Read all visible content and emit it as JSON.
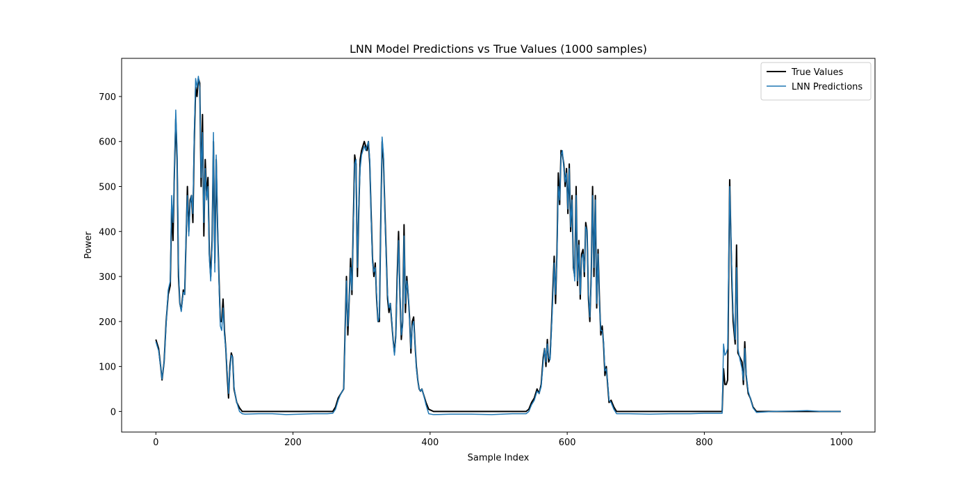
{
  "chart_data": {
    "type": "line",
    "title": "LNN Model Predictions vs True Values (1000 samples)",
    "x_label": "Sample Index",
    "y_label": "Power",
    "xlim": [
      -49.95,
      1048.95
    ],
    "ylim": [
      -45.7,
      784.8
    ],
    "xticks": [
      0,
      200,
      400,
      600,
      800,
      1000
    ],
    "yticks": [
      0,
      100,
      200,
      300,
      400,
      500,
      600,
      700
    ],
    "legend": "upper right",
    "x": [
      0,
      4,
      7,
      9,
      12,
      15,
      18,
      21,
      23,
      25,
      27,
      29,
      31,
      33,
      35,
      37,
      40,
      42,
      44,
      46,
      48,
      50,
      52,
      54,
      56,
      58,
      60,
      62,
      64,
      66,
      68,
      70,
      72,
      74,
      76,
      78,
      80,
      82,
      84,
      86,
      88,
      90,
      92,
      94,
      96,
      98,
      100,
      102,
      104,
      106,
      108,
      110,
      112,
      114,
      116,
      118,
      122,
      126,
      130,
      150,
      170,
      190,
      210,
      230,
      250,
      258,
      262,
      266,
      270,
      274,
      276,
      278,
      280,
      282,
      284,
      286,
      288,
      290,
      292,
      294,
      296,
      298,
      300,
      302,
      304,
      306,
      308,
      310,
      312,
      314,
      316,
      318,
      320,
      322,
      324,
      326,
      328,
      330,
      332,
      334,
      336,
      338,
      340,
      342,
      344,
      346,
      348,
      350,
      352,
      354,
      356,
      358,
      360,
      362,
      364,
      366,
      368,
      370,
      372,
      374,
      376,
      378,
      380,
      382,
      384,
      386,
      388,
      390,
      394,
      398,
      405,
      430,
      460,
      490,
      520,
      540,
      544,
      548,
      552,
      556,
      559,
      562,
      565,
      567,
      569,
      571,
      573,
      575,
      577,
      579,
      581,
      583,
      585,
      587,
      589,
      591,
      593,
      595,
      597,
      599,
      601,
      603,
      605,
      607,
      609,
      611,
      613,
      615,
      617,
      619,
      621,
      623,
      625,
      627,
      629,
      631,
      633,
      635,
      637,
      639,
      641,
      643,
      645,
      647,
      649,
      651,
      653,
      655,
      657,
      659,
      661,
      664,
      668,
      672,
      690,
      720,
      750,
      780,
      800,
      826,
      828,
      830,
      832,
      834,
      837,
      840,
      842,
      845,
      847,
      849,
      852,
      855,
      857,
      859,
      861,
      864,
      867,
      871,
      876,
      900,
      930,
      950,
      970,
      999
    ],
    "series": [
      {
        "name": "True Values",
        "color": "#000000",
        "width": 2,
        "values": [
          160,
          140,
          100,
          70,
          110,
          200,
          260,
          280,
          450,
          380,
          530,
          650,
          560,
          300,
          240,
          225,
          270,
          260,
          380,
          500,
          400,
          470,
          480,
          420,
          600,
          720,
          700,
          740,
          730,
          500,
          660,
          390,
          560,
          480,
          520,
          350,
          300,
          380,
          600,
          330,
          560,
          410,
          300,
          200,
          200,
          250,
          180,
          140,
          80,
          30,
          100,
          130,
          120,
          50,
          35,
          20,
          8,
          0,
          0,
          0,
          0,
          0,
          0,
          0,
          0,
          0,
          10,
          30,
          40,
          50,
          180,
          300,
          170,
          250,
          340,
          260,
          420,
          570,
          550,
          300,
          450,
          560,
          580,
          590,
          600,
          590,
          580,
          600,
          550,
          440,
          340,
          300,
          330,
          250,
          200,
          200,
          420,
          600,
          560,
          450,
          350,
          250,
          220,
          240,
          200,
          160,
          130,
          170,
          300,
          400,
          260,
          160,
          200,
          415,
          220,
          300,
          260,
          210,
          130,
          200,
          210,
          150,
          100,
          70,
          50,
          45,
          50,
          40,
          20,
          5,
          0,
          0,
          0,
          0,
          0,
          0,
          5,
          20,
          30,
          50,
          40,
          60,
          120,
          140,
          100,
          160,
          110,
          120,
          190,
          270,
          345,
          240,
          350,
          530,
          460,
          580,
          570,
          550,
          500,
          540,
          440,
          550,
          400,
          480,
          320,
          300,
          500,
          280,
          380,
          250,
          350,
          360,
          300,
          420,
          400,
          250,
          200,
          300,
          500,
          300,
          480,
          230,
          360,
          250,
          170,
          190,
          150,
          80,
          100,
          60,
          20,
          25,
          10,
          0,
          0,
          0,
          0,
          0,
          0,
          0,
          95,
          60,
          60,
          70,
          515,
          300,
          200,
          150,
          370,
          130,
          120,
          110,
          60,
          155,
          80,
          40,
          30,
          10,
          0,
          0,
          0,
          0,
          0,
          0
        ]
      },
      {
        "name": "LNN Predictions",
        "color": "#1f77b4",
        "width": 1.5,
        "values": [
          155,
          135,
          100,
          72,
          110,
          195,
          270,
          290,
          480,
          420,
          520,
          670,
          580,
          320,
          240,
          222,
          265,
          260,
          390,
          480,
          390,
          460,
          480,
          440,
          620,
          740,
          720,
          745,
          720,
          520,
          620,
          420,
          540,
          470,
          500,
          340,
          290,
          370,
          620,
          310,
          570,
          420,
          290,
          190,
          180,
          230,
          170,
          140,
          90,
          40,
          90,
          125,
          120,
          55,
          35,
          20,
          0,
          -5,
          -6,
          -5,
          -5,
          -7,
          -6,
          -5,
          -5,
          -4,
          5,
          25,
          40,
          50,
          170,
          290,
          190,
          250,
          320,
          270,
          400,
          550,
          560,
          320,
          460,
          540,
          570,
          580,
          590,
          580,
          590,
          600,
          560,
          430,
          330,
          310,
          320,
          260,
          200,
          210,
          410,
          610,
          570,
          440,
          340,
          260,
          230,
          240,
          205,
          160,
          125,
          165,
          280,
          380,
          270,
          170,
          190,
          390,
          240,
          290,
          265,
          205,
          140,
          190,
          200,
          150,
          95,
          70,
          50,
          45,
          50,
          40,
          15,
          -5,
          -7,
          -6,
          -6,
          -7,
          -5,
          -5,
          0,
          15,
          25,
          45,
          40,
          55,
          110,
          140,
          110,
          150,
          120,
          115,
          180,
          250,
          330,
          260,
          340,
          500,
          470,
          570,
          580,
          540,
          510,
          530,
          450,
          540,
          410,
          470,
          330,
          290,
          480,
          290,
          370,
          260,
          340,
          350,
          310,
          410,
          400,
          260,
          210,
          290,
          480,
          320,
          470,
          240,
          350,
          240,
          180,
          180,
          155,
          90,
          95,
          65,
          25,
          20,
          5,
          -5,
          -5,
          -6,
          -5,
          -5,
          -4,
          -4,
          150,
          125,
          130,
          140,
          500,
          320,
          220,
          160,
          320,
          140,
          115,
          95,
          70,
          140,
          85,
          45,
          30,
          8,
          -2,
          0,
          1,
          2,
          0,
          0
        ]
      }
    ]
  }
}
